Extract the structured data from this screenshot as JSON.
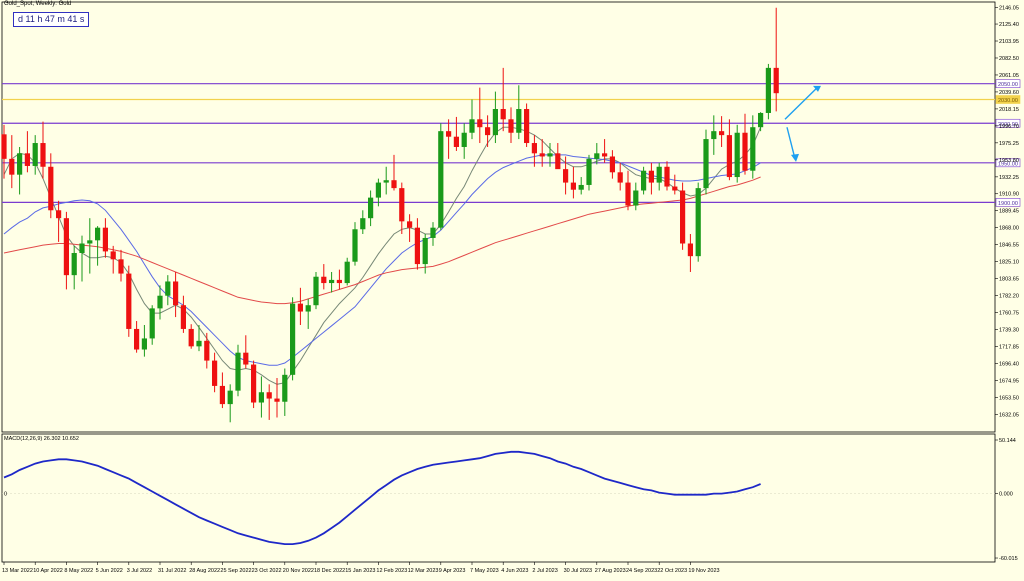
{
  "window": {
    "title": "Gold_Spot, Weekly:  Gold",
    "countdown": "d 11 h 47 m 41 s"
  },
  "colors": {
    "background": "#ffffe6",
    "bull": "#1a9a1a",
    "bear": "#ee1111",
    "ma_fast": "#778877",
    "ma_mid": "#5a6ae6",
    "ma_slow": "#e24a4a",
    "hline": "#7a3ccf",
    "hline_yellow": "#f2d24c",
    "macd": "#1e28c8",
    "arrow": "#1ea0f0"
  },
  "chart_data": [
    {
      "type": "candlestick",
      "title": "Gold_Spot, Weekly:  Gold",
      "ylim": [
        1611.0,
        2152.0
      ],
      "y_ticks": [
        "2146.05",
        "2125.40",
        "2103.95",
        "2082.50",
        "2061.05",
        "2039.60",
        "2018.15",
        "1996.70",
        "1975.25",
        "1953.80",
        "1932.25",
        "1910.90",
        "1889.45",
        "1868.00",
        "1846.55",
        "1825.10",
        "1803.65",
        "1782.20",
        "1760.75",
        "1739.30",
        "1717.85",
        "1696.40",
        "1674.95",
        "1653.50",
        "1632.05"
      ],
      "x_labels": [
        "13 Mar 2022",
        "10 Apr 2022",
        "8 May 2022",
        "5 Jun 2022",
        "3 Jul 2022",
        "31 Jul 2022",
        "28 Aug 2022",
        "25 Sep 2022",
        "23 Oct 2022",
        "20 Nov 2022",
        "18 Dec 2022",
        "15 Jan 2023",
        "12 Feb 2023",
        "12 Mar 2023",
        "9 Apr 2023",
        "7 May 2023",
        "4 Jun 2023",
        "2 Jul 2023",
        "30 Jul 2023",
        "27 Aug 2023",
        "24 Sep 2023",
        "22 Oct 2023",
        "19 Nov 2023"
      ],
      "hlines": [
        {
          "value": 2050.0,
          "label": "2050.00",
          "color": "#7a3ccf"
        },
        {
          "value": 2030.0,
          "label": "2030.00",
          "color": "#f2d24c"
        },
        {
          "value": 2000.0,
          "label": "2000.00",
          "color": "#7a3ccf"
        },
        {
          "value": 1950.0,
          "label": "1950.00",
          "color": "#7a3ccf"
        },
        {
          "value": 1900.0,
          "label": "1900.00",
          "color": "#7a3ccf"
        }
      ],
      "candles": [
        [
          1986,
          1998,
          1930,
          1955
        ],
        [
          1955,
          1985,
          1918,
          1935
        ],
        [
          1935,
          1970,
          1910,
          1962
        ],
        [
          1962,
          1990,
          1938,
          1946
        ],
        [
          1946,
          1985,
          1935,
          1975
        ],
        [
          1975,
          2002,
          1930,
          1945
        ],
        [
          1945,
          1962,
          1880,
          1890
        ],
        [
          1890,
          1902,
          1850,
          1880
        ],
        [
          1880,
          1888,
          1790,
          1808
        ],
        [
          1808,
          1845,
          1790,
          1836
        ],
        [
          1836,
          1858,
          1800,
          1848
        ],
        [
          1848,
          1880,
          1810,
          1852
        ],
        [
          1852,
          1870,
          1820,
          1868
        ],
        [
          1868,
          1880,
          1830,
          1838
        ],
        [
          1838,
          1845,
          1810,
          1828
        ],
        [
          1828,
          1840,
          1800,
          1810
        ],
        [
          1810,
          1820,
          1730,
          1740
        ],
        [
          1740,
          1750,
          1710,
          1714
        ],
        [
          1714,
          1745,
          1705,
          1728
        ],
        [
          1728,
          1770,
          1720,
          1766
        ],
        [
          1766,
          1795,
          1752,
          1782
        ],
        [
          1782,
          1808,
          1770,
          1800
        ],
        [
          1800,
          1812,
          1755,
          1770
        ],
        [
          1770,
          1782,
          1735,
          1740
        ],
        [
          1740,
          1746,
          1715,
          1718
        ],
        [
          1718,
          1745,
          1712,
          1725
        ],
        [
          1725,
          1735,
          1690,
          1700
        ],
        [
          1700,
          1710,
          1660,
          1668
        ],
        [
          1668,
          1685,
          1640,
          1645
        ],
        [
          1645,
          1670,
          1622,
          1662
        ],
        [
          1662,
          1720,
          1655,
          1710
        ],
        [
          1710,
          1732,
          1690,
          1695
        ],
        [
          1695,
          1700,
          1640,
          1647
        ],
        [
          1647,
          1680,
          1628,
          1660
        ],
        [
          1660,
          1670,
          1625,
          1652
        ],
        [
          1652,
          1678,
          1628,
          1648
        ],
        [
          1648,
          1690,
          1630,
          1682
        ],
        [
          1682,
          1780,
          1675,
          1772
        ],
        [
          1772,
          1792,
          1745,
          1762
        ],
        [
          1762,
          1778,
          1740,
          1770
        ],
        [
          1770,
          1812,
          1765,
          1806
        ],
        [
          1806,
          1822,
          1790,
          1798
        ],
        [
          1798,
          1812,
          1786,
          1802
        ],
        [
          1802,
          1815,
          1790,
          1798
        ],
        [
          1798,
          1830,
          1795,
          1825
        ],
        [
          1825,
          1875,
          1820,
          1866
        ],
        [
          1866,
          1890,
          1860,
          1880
        ],
        [
          1880,
          1915,
          1870,
          1906
        ],
        [
          1906,
          1930,
          1895,
          1925
        ],
        [
          1925,
          1945,
          1910,
          1928
        ],
        [
          1928,
          1960,
          1915,
          1918
        ],
        [
          1918,
          1925,
          1860,
          1876
        ],
        [
          1876,
          1885,
          1850,
          1868
        ],
        [
          1868,
          1880,
          1815,
          1822
        ],
        [
          1822,
          1860,
          1810,
          1855
        ],
        [
          1855,
          1875,
          1845,
          1868
        ],
        [
          1868,
          2000,
          1865,
          1990
        ],
        [
          1990,
          2005,
          1955,
          1983
        ],
        [
          1983,
          2008,
          1965,
          1970
        ],
        [
          1970,
          2000,
          1955,
          1988
        ],
        [
          1988,
          2030,
          1980,
          2005
        ],
        [
          2005,
          2045,
          1975,
          1995
        ],
        [
          1995,
          2010,
          1970,
          1985
        ],
        [
          1985,
          2040,
          1975,
          2018
        ],
        [
          2018,
          2070,
          1990,
          2005
        ],
        [
          2005,
          2020,
          1975,
          1988
        ],
        [
          1988,
          2048,
          1980,
          2018
        ],
        [
          2018,
          2025,
          1970,
          1975
        ],
        [
          1975,
          1985,
          1945,
          1962
        ],
        [
          1962,
          1980,
          1945,
          1958
        ],
        [
          1958,
          1975,
          1945,
          1962
        ],
        [
          1962,
          1975,
          1945,
          1942
        ],
        [
          1942,
          1958,
          1910,
          1925
        ],
        [
          1925,
          1945,
          1905,
          1916
        ],
        [
          1916,
          1932,
          1910,
          1922
        ],
        [
          1922,
          1960,
          1915,
          1955
        ],
        [
          1955,
          1975,
          1948,
          1962
        ],
        [
          1962,
          1980,
          1950,
          1958
        ],
        [
          1958,
          1966,
          1930,
          1938
        ],
        [
          1938,
          1950,
          1915,
          1925
        ],
        [
          1925,
          1940,
          1890,
          1896
        ],
        [
          1896,
          1925,
          1890,
          1915
        ],
        [
          1915,
          1945,
          1910,
          1940
        ],
        [
          1940,
          1950,
          1910,
          1925
        ],
        [
          1925,
          1950,
          1915,
          1945
        ],
        [
          1945,
          1952,
          1915,
          1920
        ],
        [
          1920,
          1935,
          1910,
          1915
        ],
        [
          1915,
          1925,
          1840,
          1848
        ],
        [
          1848,
          1860,
          1812,
          1832
        ],
        [
          1832,
          1925,
          1825,
          1918
        ],
        [
          1918,
          1992,
          1910,
          1980
        ],
        [
          1980,
          2010,
          1960,
          1990
        ],
        [
          1990,
          2009,
          1970,
          1985
        ],
        [
          1985,
          2005,
          1928,
          1932
        ],
        [
          1932,
          1998,
          1925,
          1988
        ],
        [
          1988,
          2012,
          1935,
          1940
        ],
        [
          1940,
          2010,
          1930,
          1995
        ],
        [
          1995,
          2014,
          1990,
          2013
        ],
        [
          2013,
          2075,
          2005,
          2070
        ],
        [
          2070,
          2146,
          2015,
          2038
        ]
      ],
      "moving_averages": [
        {
          "values": [
            1935,
            1955,
            1962,
            1960,
            1950,
            1930,
            1906,
            1882,
            1858,
            1845,
            1836,
            1830,
            1830,
            1832,
            1830,
            1824,
            1810,
            1790,
            1772,
            1760,
            1760,
            1765,
            1770,
            1765,
            1755,
            1742,
            1728,
            1714,
            1700,
            1690,
            1688,
            1690,
            1688,
            1682,
            1675,
            1670,
            1672,
            1686,
            1700,
            1716,
            1732,
            1748,
            1760,
            1772,
            1782,
            1792,
            1805,
            1820,
            1835,
            1848,
            1860,
            1866,
            1868,
            1865,
            1860,
            1860,
            1872,
            1888,
            1905,
            1920,
            1940,
            1958,
            1975,
            1988,
            1995,
            1995,
            1993,
            1990,
            1985,
            1978,
            1968,
            1958,
            1950,
            1945,
            1945,
            1948,
            1952,
            1955,
            1955,
            1950,
            1942,
            1935,
            1932,
            1930,
            1930,
            1925,
            1918,
            1912,
            1908,
            1910,
            1918,
            1930,
            1942,
            1948,
            1952,
            1960,
            1972,
            1995
          ]
        },
        {
          "values": [
            1860,
            1868,
            1875,
            1880,
            1888,
            1893,
            1895,
            1898,
            1900,
            1902,
            1903,
            1902,
            1898,
            1890,
            1878,
            1866,
            1852,
            1838,
            1822,
            1806,
            1792,
            1782,
            1776,
            1770,
            1762,
            1752,
            1742,
            1732,
            1722,
            1712,
            1704,
            1700,
            1698,
            1696,
            1694,
            1694,
            1697,
            1704,
            1712,
            1720,
            1728,
            1736,
            1744,
            1752,
            1760,
            1768,
            1780,
            1792,
            1804,
            1816,
            1826,
            1836,
            1843,
            1849,
            1853,
            1857,
            1865,
            1876,
            1887,
            1898,
            1910,
            1920,
            1930,
            1938,
            1944,
            1948,
            1952,
            1956,
            1958,
            1960,
            1960,
            1960,
            1960,
            1958,
            1957,
            1956,
            1955,
            1954,
            1952,
            1950,
            1946,
            1942,
            1938,
            1934,
            1932,
            1930,
            1928,
            1927,
            1927,
            1928,
            1930,
            1932,
            1934,
            1935,
            1936,
            1940,
            1944,
            1950
          ]
        },
        {
          "values": [
            1836,
            1838,
            1840,
            1842,
            1844,
            1846,
            1847,
            1848,
            1848,
            1847,
            1846,
            1845,
            1844,
            1842,
            1840,
            1838,
            1835,
            1832,
            1828,
            1824,
            1820,
            1816,
            1812,
            1808,
            1804,
            1800,
            1796,
            1792,
            1788,
            1784,
            1780,
            1778,
            1776,
            1774,
            1773,
            1772,
            1772,
            1773,
            1775,
            1778,
            1781,
            1784,
            1787,
            1790,
            1793,
            1796,
            1800,
            1804,
            1808,
            1811,
            1813,
            1815,
            1816,
            1817,
            1818,
            1819,
            1822,
            1825,
            1829,
            1833,
            1837,
            1841,
            1845,
            1849,
            1852,
            1855,
            1858,
            1861,
            1864,
            1867,
            1870,
            1873,
            1876,
            1879,
            1882,
            1885,
            1887,
            1889,
            1891,
            1893,
            1895,
            1897,
            1898,
            1899,
            1900,
            1901,
            1902,
            1903,
            1905,
            1908,
            1911,
            1914,
            1917,
            1920,
            1922,
            1925,
            1928,
            1932
          ]
        }
      ]
    },
    {
      "type": "line",
      "title": "MACD(12,26,9) 26.302 10.652",
      "ylim": [
        -60.0,
        50.0
      ],
      "y_ticks": [
        "50.144",
        "0.000",
        "-60.015"
      ],
      "series": [
        {
          "values": [
            15,
            18,
            22,
            25,
            28,
            30,
            31,
            32,
            32,
            31,
            30,
            28,
            26,
            23,
            20,
            17,
            14,
            10,
            6,
            2,
            -2,
            -6,
            -10,
            -14,
            -18,
            -22,
            -25,
            -28,
            -31,
            -34,
            -37,
            -39,
            -41,
            -43,
            -45,
            -46,
            -47,
            -47,
            -46,
            -44,
            -41,
            -37,
            -32,
            -27,
            -21,
            -15,
            -9,
            -3,
            3,
            8,
            13,
            17,
            20,
            23,
            25,
            27,
            28,
            29,
            30,
            31,
            32,
            33,
            35,
            37,
            38,
            39,
            39,
            38,
            37,
            35,
            33,
            30,
            28,
            25,
            23,
            20,
            17,
            14,
            12,
            10,
            8,
            6,
            4,
            3,
            1,
            0,
            -1,
            -1,
            -1,
            -1,
            -1,
            0,
            0,
            1,
            2,
            4,
            6,
            9
          ]
        }
      ]
    }
  ],
  "annotations": {
    "label_2050": "2050.00",
    "label_2030": "2030.00",
    "label_2000": "2000.00",
    "label_1950": "1950.00",
    "label_1900": "1900.00"
  }
}
